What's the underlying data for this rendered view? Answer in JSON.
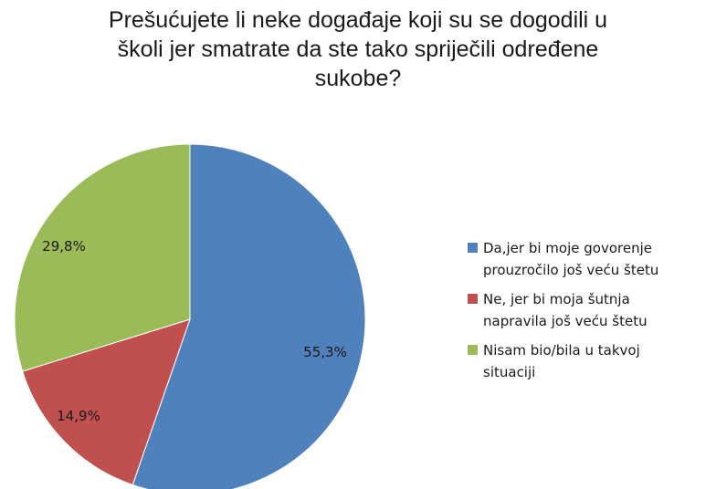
{
  "chart_data": {
    "type": "pie",
    "title_lines": [
      "Prešućujete li neke događaje koji su se dogodili u",
      "školi jer smatrate da ste tako spriječili određene",
      "sukobe?"
    ],
    "slices": [
      {
        "name_lines": [
          "Da,jer bi moje govorenje",
          "prouzročilo još veću štetu"
        ],
        "value": 55.3,
        "label": "55,3%",
        "color": "#4f81bd"
      },
      {
        "name_lines": [
          "Ne, jer bi moja šutnja",
          "napravila još veću štetu"
        ],
        "value": 14.9,
        "label": "14,9%",
        "color": "#c0504d"
      },
      {
        "name_lines": [
          "Nisam bio/bila u takvoj",
          "situaciji"
        ],
        "value": 29.8,
        "label": "29,8%",
        "color": "#9bbb59"
      }
    ],
    "start_angle": "12 o'clock",
    "direction": "clockwise",
    "legend_position": "right"
  }
}
